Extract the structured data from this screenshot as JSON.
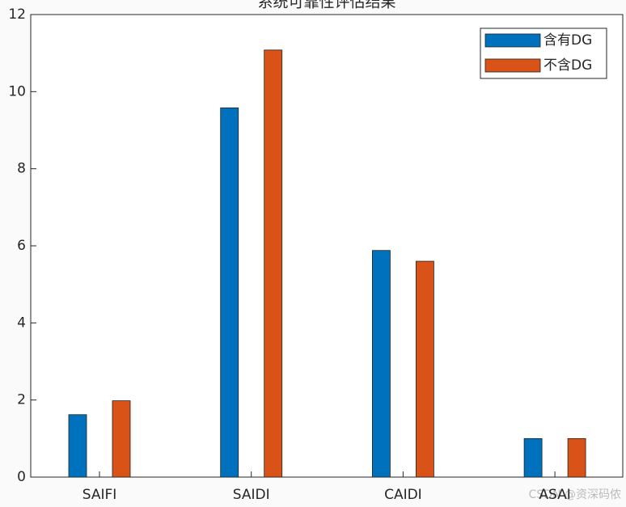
{
  "chart_data": {
    "type": "bar",
    "title": "系统可靠性评估结果",
    "categories": [
      "SAIFI",
      "SAIDI",
      "CAIDI",
      "ASAI"
    ],
    "series": [
      {
        "name": "含有DG",
        "color": "#0072bd",
        "values": [
          1.62,
          9.58,
          5.88,
          1.0
        ]
      },
      {
        "name": "不含DG",
        "color": "#d95319",
        "values": [
          1.98,
          11.08,
          5.6,
          1.0
        ]
      }
    ],
    "ylim": [
      0,
      12
    ],
    "yticks": [
      0,
      2,
      4,
      6,
      8,
      10,
      12
    ],
    "legend": "upper right",
    "watermark": "CSDN @资深码侬"
  }
}
